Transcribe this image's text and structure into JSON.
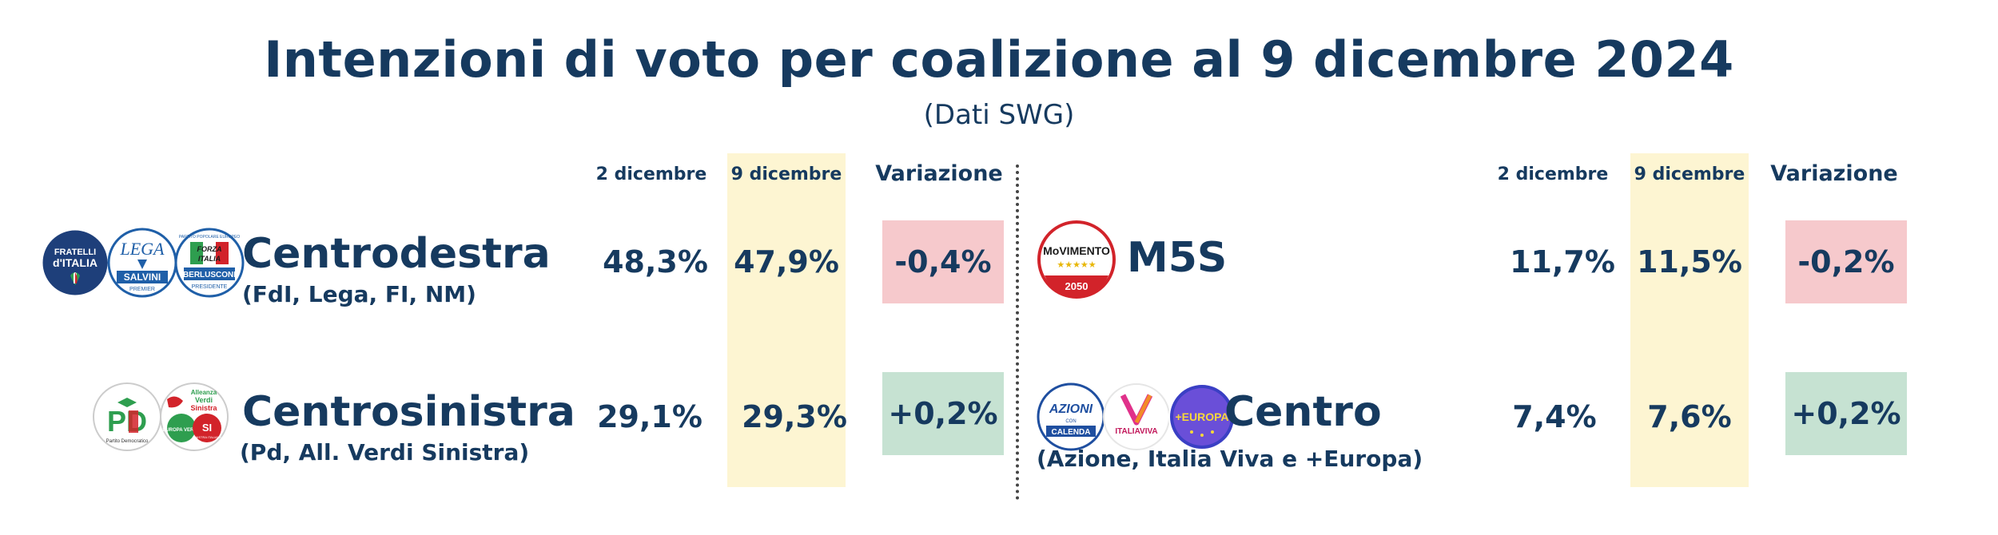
{
  "title": "Intenzioni di voto per coalizione al 9 dicembre 2024",
  "subtitle": "(Dati SWG)",
  "columns": {
    "col1": "2 dicembre",
    "col2": "9 dicembre",
    "col3": "Variazione"
  },
  "colors": {
    "text": "#163a5f",
    "highlight": "#fdf5d2",
    "negative": "#f6c9cc",
    "positive": "#c6e2d2"
  },
  "logos": {
    "fdi": {
      "l1": "FRATELLI",
      "l2": "d'ITALIA"
    },
    "lega": {
      "l1": "LEGA",
      "l2": "SALVINI",
      "l3": "PREMIER"
    },
    "fi": {
      "l1": "FORZA",
      "l2": "ITALIA",
      "l3": "BERLUSCONI",
      "l4": "PRESIDENTE",
      "arc": "PARTITO POPOLARE EUROPEO"
    },
    "pd": {
      "l1": "PD",
      "l2": "Partito Democratico"
    },
    "avs": {
      "l1": "Alleanza",
      "l2": "Verdi",
      "l3": "Sinistra",
      "l4": "EUROPA VERDE",
      "l5": "SI",
      "l6": "SINISTRA ITALIANA"
    },
    "m5s": {
      "l1": "MoVIMENTO",
      "l2": "★★★★★",
      "l3": "2050"
    },
    "azione": {
      "l1": "AZIONI",
      "l2": "CON",
      "l3": "CALENDA"
    },
    "iv": {
      "l1": "ITALIAVIVA"
    },
    "europa": {
      "l1": "+EUROPA"
    }
  },
  "chart_data": {
    "type": "table",
    "title": "Intenzioni di voto per coalizione al 9 dicembre 2024",
    "subtitle": "(Dati SWG)",
    "columns": [
      "2 dicembre",
      "9 dicembre",
      "Variazione"
    ],
    "rows": [
      {
        "name": "Centrodestra",
        "detail": "(FdI, Lega, FI, NM)",
        "dec2": "48,3%",
        "dec9": "47,9%",
        "change": "-0,4%",
        "trend": "negative"
      },
      {
        "name": "Centrosinistra",
        "detail": "(Pd, All. Verdi Sinistra)",
        "dec2": "29,1%",
        "dec9": "29,3%",
        "change": "+0,2%",
        "trend": "positive"
      },
      {
        "name": "M5S",
        "detail": "",
        "dec2": "11,7%",
        "dec9": "11,5%",
        "change": "-0,2%",
        "trend": "negative"
      },
      {
        "name": "Centro",
        "detail": "(Azione, Italia Viva e +Europa)",
        "dec2": "7,4%",
        "dec9": "7,6%",
        "change": "+0,2%",
        "trend": "positive"
      }
    ]
  }
}
